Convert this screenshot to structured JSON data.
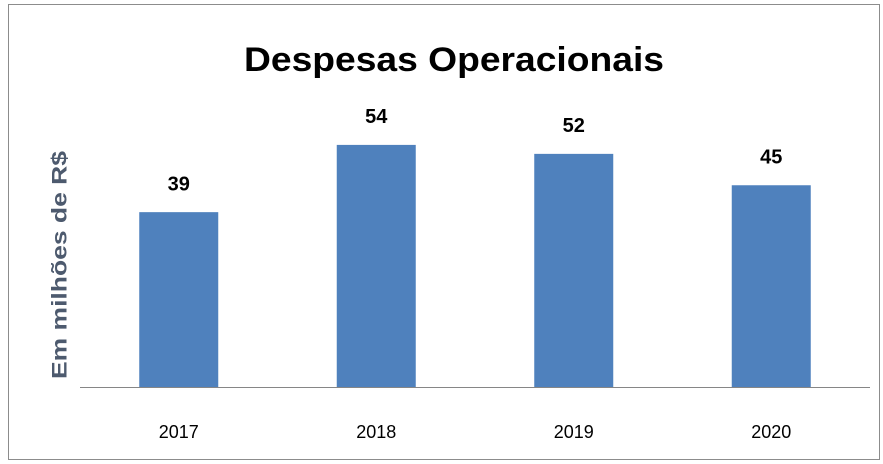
{
  "chart_data": {
    "type": "bar",
    "title": "Despesas Operacionais",
    "y_label": "Em milhões de R$",
    "categories": [
      "2017",
      "2018",
      "2019",
      "2020"
    ],
    "values": [
      39,
      54,
      52,
      45
    ],
    "color": "#4f81bd",
    "ylim": [
      0,
      60
    ]
  }
}
